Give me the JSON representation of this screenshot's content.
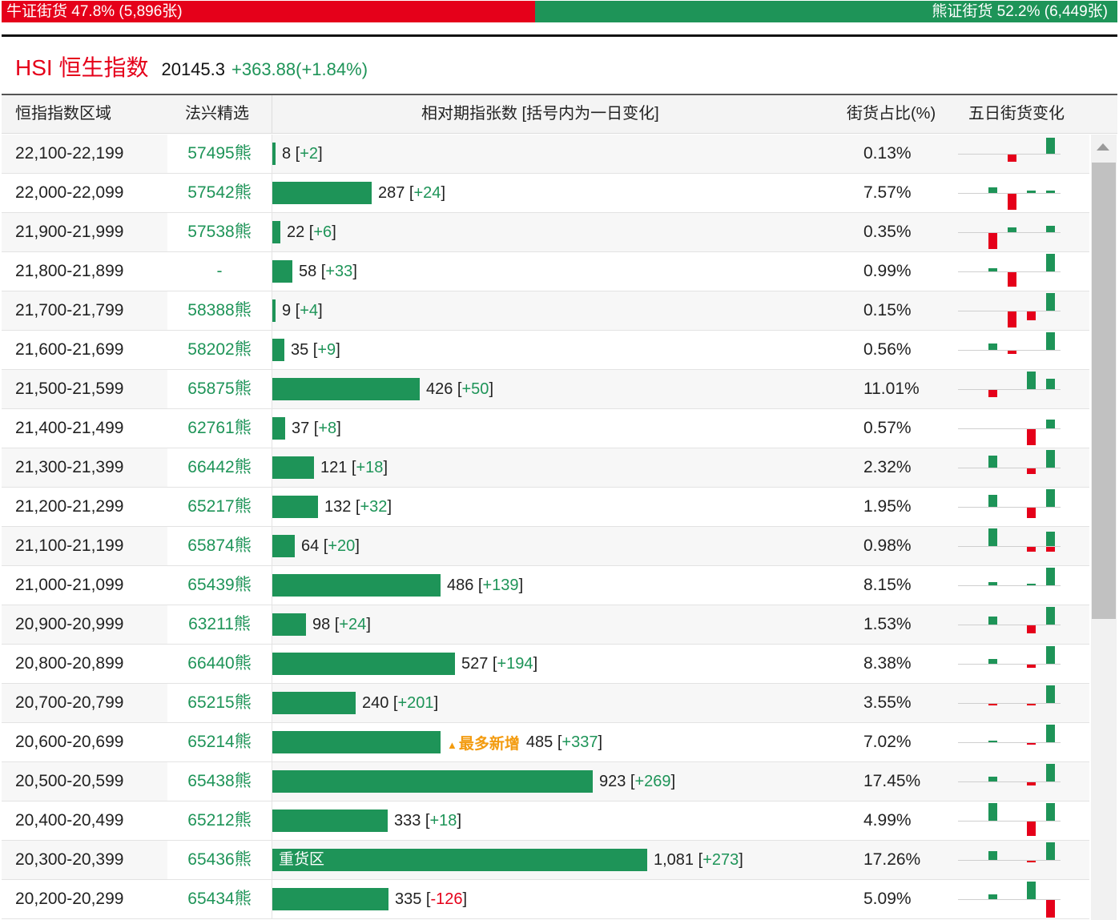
{
  "ratio_bar": {
    "bull_label": "牛证街货 47.8% (5,896张)",
    "bear_label": "熊证街货 52.2% (6,449张)",
    "bull_pct": 47.8,
    "bear_pct": 52.2,
    "bull_color": "#e5001a",
    "bear_color": "#1e9458"
  },
  "index": {
    "name": "HSI 恒生指数",
    "price": "20145.3",
    "change": "+363.88(+1.84%)"
  },
  "columns": {
    "range": "恒指指数区域",
    "warrant": "法兴精选",
    "count": "相对期指张数 [括号内为一日变化]",
    "share": "街货占比(%)",
    "five_day": "五日街货变化"
  },
  "bar_scale_max": 1081,
  "rows": [
    {
      "range": "22,100-22,199",
      "warrant": "57495熊",
      "count": "8",
      "count_value": 8,
      "chg": "+2",
      "share": "0.13%",
      "spark": [
        0,
        -0.4,
        0,
        0,
        0.9
      ]
    },
    {
      "range": "22,000-22,099",
      "warrant": "57542熊",
      "count": "287",
      "count_value": 287,
      "chg": "+24",
      "share": "7.57%",
      "spark": [
        0.3,
        -0.9,
        0.15,
        0.15,
        0.15
      ]
    },
    {
      "range": "21,900-21,999",
      "warrant": "57538熊",
      "count": "22",
      "count_value": 22,
      "chg": "+6",
      "share": "0.35%",
      "spark": [
        -0.9,
        0.25,
        0,
        0,
        0.35
      ]
    },
    {
      "range": "21,800-21,899",
      "warrant": "-",
      "count": "58",
      "count_value": 58,
      "chg": "+33",
      "share": "0.99%",
      "spark": [
        0.2,
        -0.8,
        0,
        0.1,
        1
      ]
    },
    {
      "range": "21,700-21,799",
      "warrant": "58388熊",
      "count": "9",
      "count_value": 9,
      "chg": "+4",
      "share": "0.15%",
      "spark": [
        0,
        -0.9,
        -0.5,
        0,
        1
      ]
    },
    {
      "range": "21,600-21,699",
      "warrant": "58202熊",
      "count": "35",
      "count_value": 35,
      "chg": "+9",
      "share": "0.56%",
      "spark": [
        0.35,
        -0.2,
        0,
        0.15,
        1
      ]
    },
    {
      "range": "21,500-21,599",
      "warrant": "65875熊",
      "count": "426",
      "count_value": 426,
      "chg": "+50",
      "share": "11.01%",
      "spark": [
        -0.4,
        0,
        1,
        0.6,
        0.45
      ]
    },
    {
      "range": "21,400-21,499",
      "warrant": "62761熊",
      "count": "37",
      "count_value": 37,
      "chg": "+8",
      "share": "0.57%",
      "spark": [
        0,
        0,
        -0.9,
        0.45,
        0.5
      ]
    },
    {
      "range": "21,300-21,399",
      "warrant": "66442熊",
      "count": "121",
      "count_value": 121,
      "chg": "+18",
      "share": "2.32%",
      "spark": [
        0.7,
        0,
        -0.3,
        1,
        0.6
      ]
    },
    {
      "range": "21,200-21,299",
      "warrant": "65217熊",
      "count": "132",
      "count_value": 132,
      "chg": "+32",
      "share": "1.95%",
      "spark": [
        0.7,
        0,
        -0.6,
        0.5,
        1
      ]
    },
    {
      "range": "21,100-21,199",
      "warrant": "65874熊",
      "count": "64",
      "count_value": 64,
      "chg": "+20",
      "share": "0.98%",
      "spark": [
        1,
        0,
        -0.25,
        -0.25,
        0.8
      ]
    },
    {
      "range": "21,000-21,099",
      "warrant": "65439熊",
      "count": "486",
      "count_value": 486,
      "chg": "+139",
      "share": "8.15%",
      "spark": [
        0.2,
        0,
        0.1,
        0.3,
        1
      ]
    },
    {
      "range": "20,900-20,999",
      "warrant": "63211熊",
      "count": "98",
      "count_value": 98,
      "chg": "+24",
      "share": "1.53%",
      "spark": [
        0.45,
        0,
        -0.45,
        1,
        1
      ]
    },
    {
      "range": "20,800-20,899",
      "warrant": "66440熊",
      "count": "527",
      "count_value": 527,
      "chg": "+194",
      "share": "8.38%",
      "spark": [
        0.25,
        0,
        -0.2,
        0.3,
        1
      ]
    },
    {
      "range": "20,700-20,799",
      "warrant": "65215熊",
      "count": "240",
      "count_value": 240,
      "chg": "+201",
      "share": "3.55%",
      "spark": [
        -0.1,
        0,
        -0.1,
        0.05,
        1
      ]
    },
    {
      "range": "20,600-20,699",
      "warrant": "65214熊",
      "count": "485",
      "count_value": 485,
      "chg": "+337",
      "share": "7.02%",
      "spark": [
        0.05,
        0,
        -0.1,
        0.15,
        1
      ],
      "note": "最多新增"
    },
    {
      "range": "20,500-20,599",
      "warrant": "65438熊",
      "count": "923",
      "count_value": 923,
      "chg": "+269",
      "share": "17.45%",
      "spark": [
        0.25,
        0,
        -0.2,
        0.1,
        1
      ]
    },
    {
      "range": "20,400-20,499",
      "warrant": "65212熊",
      "count": "333",
      "count_value": 333,
      "chg": "+18",
      "share": "4.99%",
      "spark": [
        1,
        0,
        -0.8,
        1,
        0.1
      ]
    },
    {
      "range": "20,300-20,399",
      "warrant": "65436熊",
      "count": "1,081",
      "count_value": 1081,
      "chg": "+273",
      "share": "17.26%",
      "spark": [
        0.5,
        0,
        -0.1,
        0.1,
        1
      ],
      "tag": "重货区"
    },
    {
      "range": "20,200-20,299",
      "warrant": "65434熊",
      "count": "335",
      "count_value": 335,
      "chg": "-126",
      "share": "5.09%",
      "spark": [
        0.25,
        0,
        1,
        -1,
        -0.65
      ]
    }
  ]
}
